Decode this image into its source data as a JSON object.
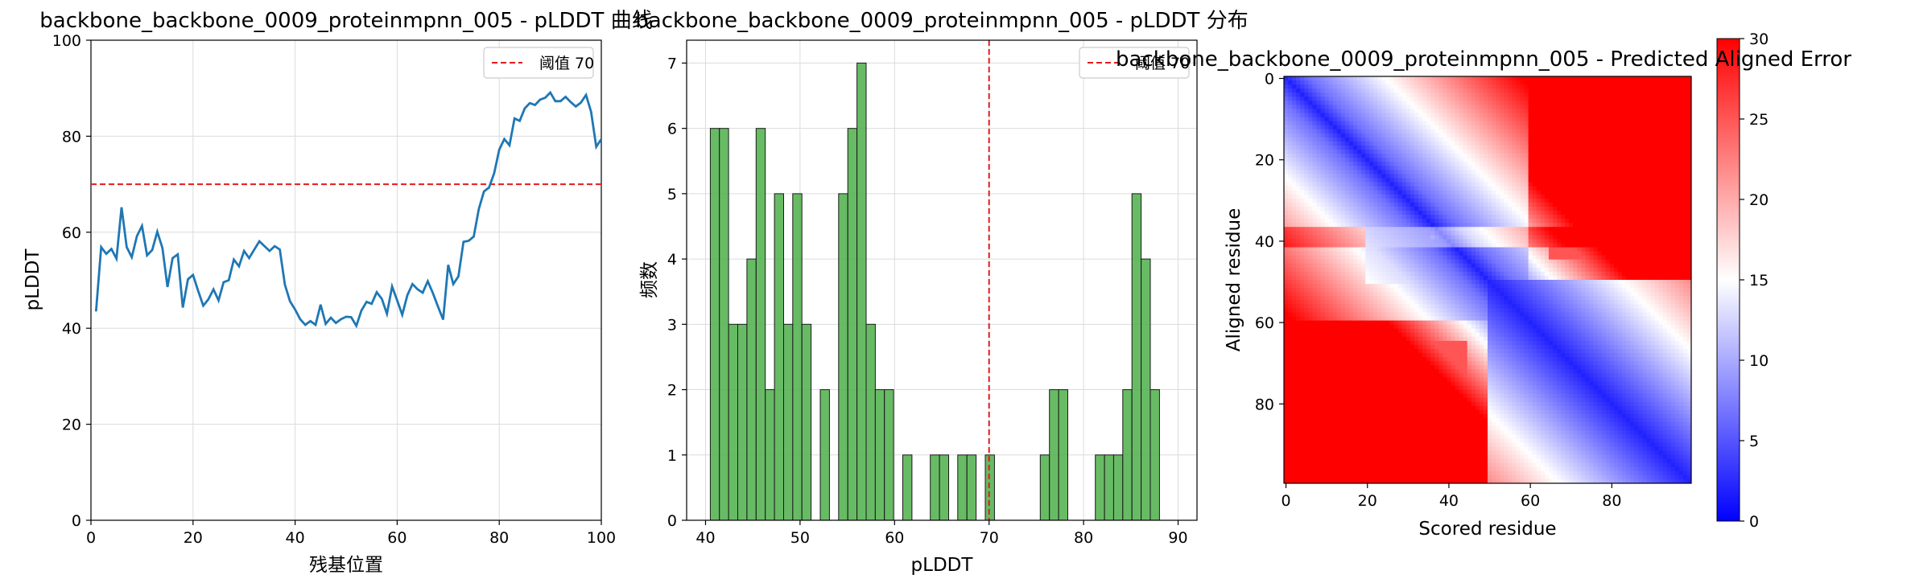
{
  "chart_data": [
    {
      "type": "line",
      "title": "backbone_backbone_0009_proteinmpnn_005 - pLDDT 曲线",
      "xlabel": "残基位置",
      "ylabel": "pLDDT",
      "xlim": [
        0,
        100
      ],
      "ylim": [
        0,
        100
      ],
      "xticks": [
        "0",
        "20",
        "40",
        "60",
        "80",
        "100"
      ],
      "yticks": [
        "0",
        "20",
        "40",
        "60",
        "80",
        "100"
      ],
      "grid": true,
      "legend": "top-right",
      "threshold": {
        "value": 70,
        "label": "阈值 70",
        "color": "#e41a1c"
      },
      "series": [
        {
          "color": "#1f77b4",
          "x": [
            1,
            2,
            3,
            4,
            5,
            6,
            7,
            8,
            9,
            10,
            11,
            12,
            13,
            14,
            15,
            16,
            17,
            18,
            19,
            20,
            21,
            22,
            23,
            24,
            25,
            26,
            27,
            28,
            29,
            30,
            31,
            32,
            33,
            34,
            35,
            36,
            37,
            38,
            39,
            40,
            41,
            42,
            43,
            44,
            45,
            46,
            47,
            48,
            49,
            50,
            51,
            52,
            53,
            54,
            55,
            56,
            57,
            58,
            59,
            60,
            61,
            62,
            63,
            64,
            65,
            66,
            67,
            68,
            69,
            70,
            71,
            72,
            73,
            74,
            75,
            76,
            77,
            78,
            79,
            80,
            81,
            82,
            83,
            84,
            85,
            86,
            87,
            88,
            89,
            90,
            91,
            92,
            93,
            94,
            95,
            96,
            97,
            98,
            99,
            100
          ],
          "values": [
            43.5,
            56.9,
            55.5,
            56.5,
            54.5,
            65.2,
            56.9,
            54.8,
            59.2,
            61.3,
            55.2,
            56.3,
            60.1,
            56.7,
            48.6,
            54.6,
            55.4,
            44.3,
            50.2,
            51.1,
            47.8,
            44.7,
            46.0,
            48.1,
            45.8,
            49.6,
            50.0,
            54.3,
            52.9,
            56.1,
            54.6,
            56.4,
            58.1,
            57.1,
            56.1,
            57.1,
            56.4,
            49.1,
            45.6,
            43.9,
            41.9,
            40.7,
            41.5,
            40.7,
            44.9,
            40.9,
            42.2,
            41.1,
            41.9,
            42.4,
            42.3,
            40.5,
            43.7,
            45.5,
            45.1,
            47.5,
            46.1,
            43.0,
            48.7,
            45.8,
            42.8,
            46.9,
            49.2,
            48.1,
            47.4,
            49.8,
            47.3,
            44.5,
            41.8,
            53.2,
            49.2,
            50.8,
            58.0,
            58.2,
            59.1,
            64.8,
            68.5,
            69.3,
            72.3,
            77.2,
            79.4,
            78.1,
            83.7,
            83.2,
            85.8,
            86.9,
            86.5,
            87.6,
            88.0,
            89.1,
            87.3,
            87.3,
            88.2,
            87.1,
            86.2,
            87.0,
            88.6,
            85.1,
            77.8,
            79.4
          ]
        }
      ]
    },
    {
      "type": "bar",
      "title": "backbone_backbone_0009_proteinmpnn_005 - pLDDT 分布",
      "xlabel": "pLDDT",
      "ylabel": "频数",
      "xlim": [
        38.0,
        92.0
      ],
      "ylim": [
        0,
        7.35
      ],
      "xticks": [
        "40",
        "50",
        "60",
        "70",
        "80",
        "90"
      ],
      "yticks": [
        "0",
        "1",
        "2",
        "3",
        "4",
        "5",
        "6",
        "7"
      ],
      "grid": true,
      "legend": "top-right",
      "bar_color": "#4daf4a",
      "threshold": {
        "value": 70,
        "label": "阈值 70",
        "color": "#e41a1c"
      },
      "bin_start": 40.5,
      "bin_width": 0.97,
      "values": [
        6,
        6,
        3,
        3,
        4,
        6,
        2,
        5,
        3,
        5,
        3,
        0,
        2,
        0,
        5,
        6,
        7,
        3,
        2,
        2,
        0,
        1,
        0,
        0,
        1,
        1,
        0,
        1,
        1,
        0,
        1,
        0,
        0,
        0,
        0,
        0,
        1,
        2,
        2,
        0,
        0,
        0,
        1,
        1,
        1,
        2,
        5,
        4,
        2
      ]
    },
    {
      "type": "heatmap",
      "title": "backbone_backbone_0009_proteinmpnn_005 - Predicted Aligned Error",
      "xlabel": "Scored residue",
      "ylabel": "Aligned residue",
      "n": 100,
      "xticks": [
        "0",
        "20",
        "40",
        "60",
        "80"
      ],
      "yticks": [
        "0",
        "20",
        "40",
        "60",
        "80"
      ],
      "colormap": "bwr",
      "vmin": 0,
      "vmax": 30,
      "colorbar_ticks": [
        "0",
        "5",
        "10",
        "15",
        "20",
        "25",
        "30"
      ]
    }
  ]
}
